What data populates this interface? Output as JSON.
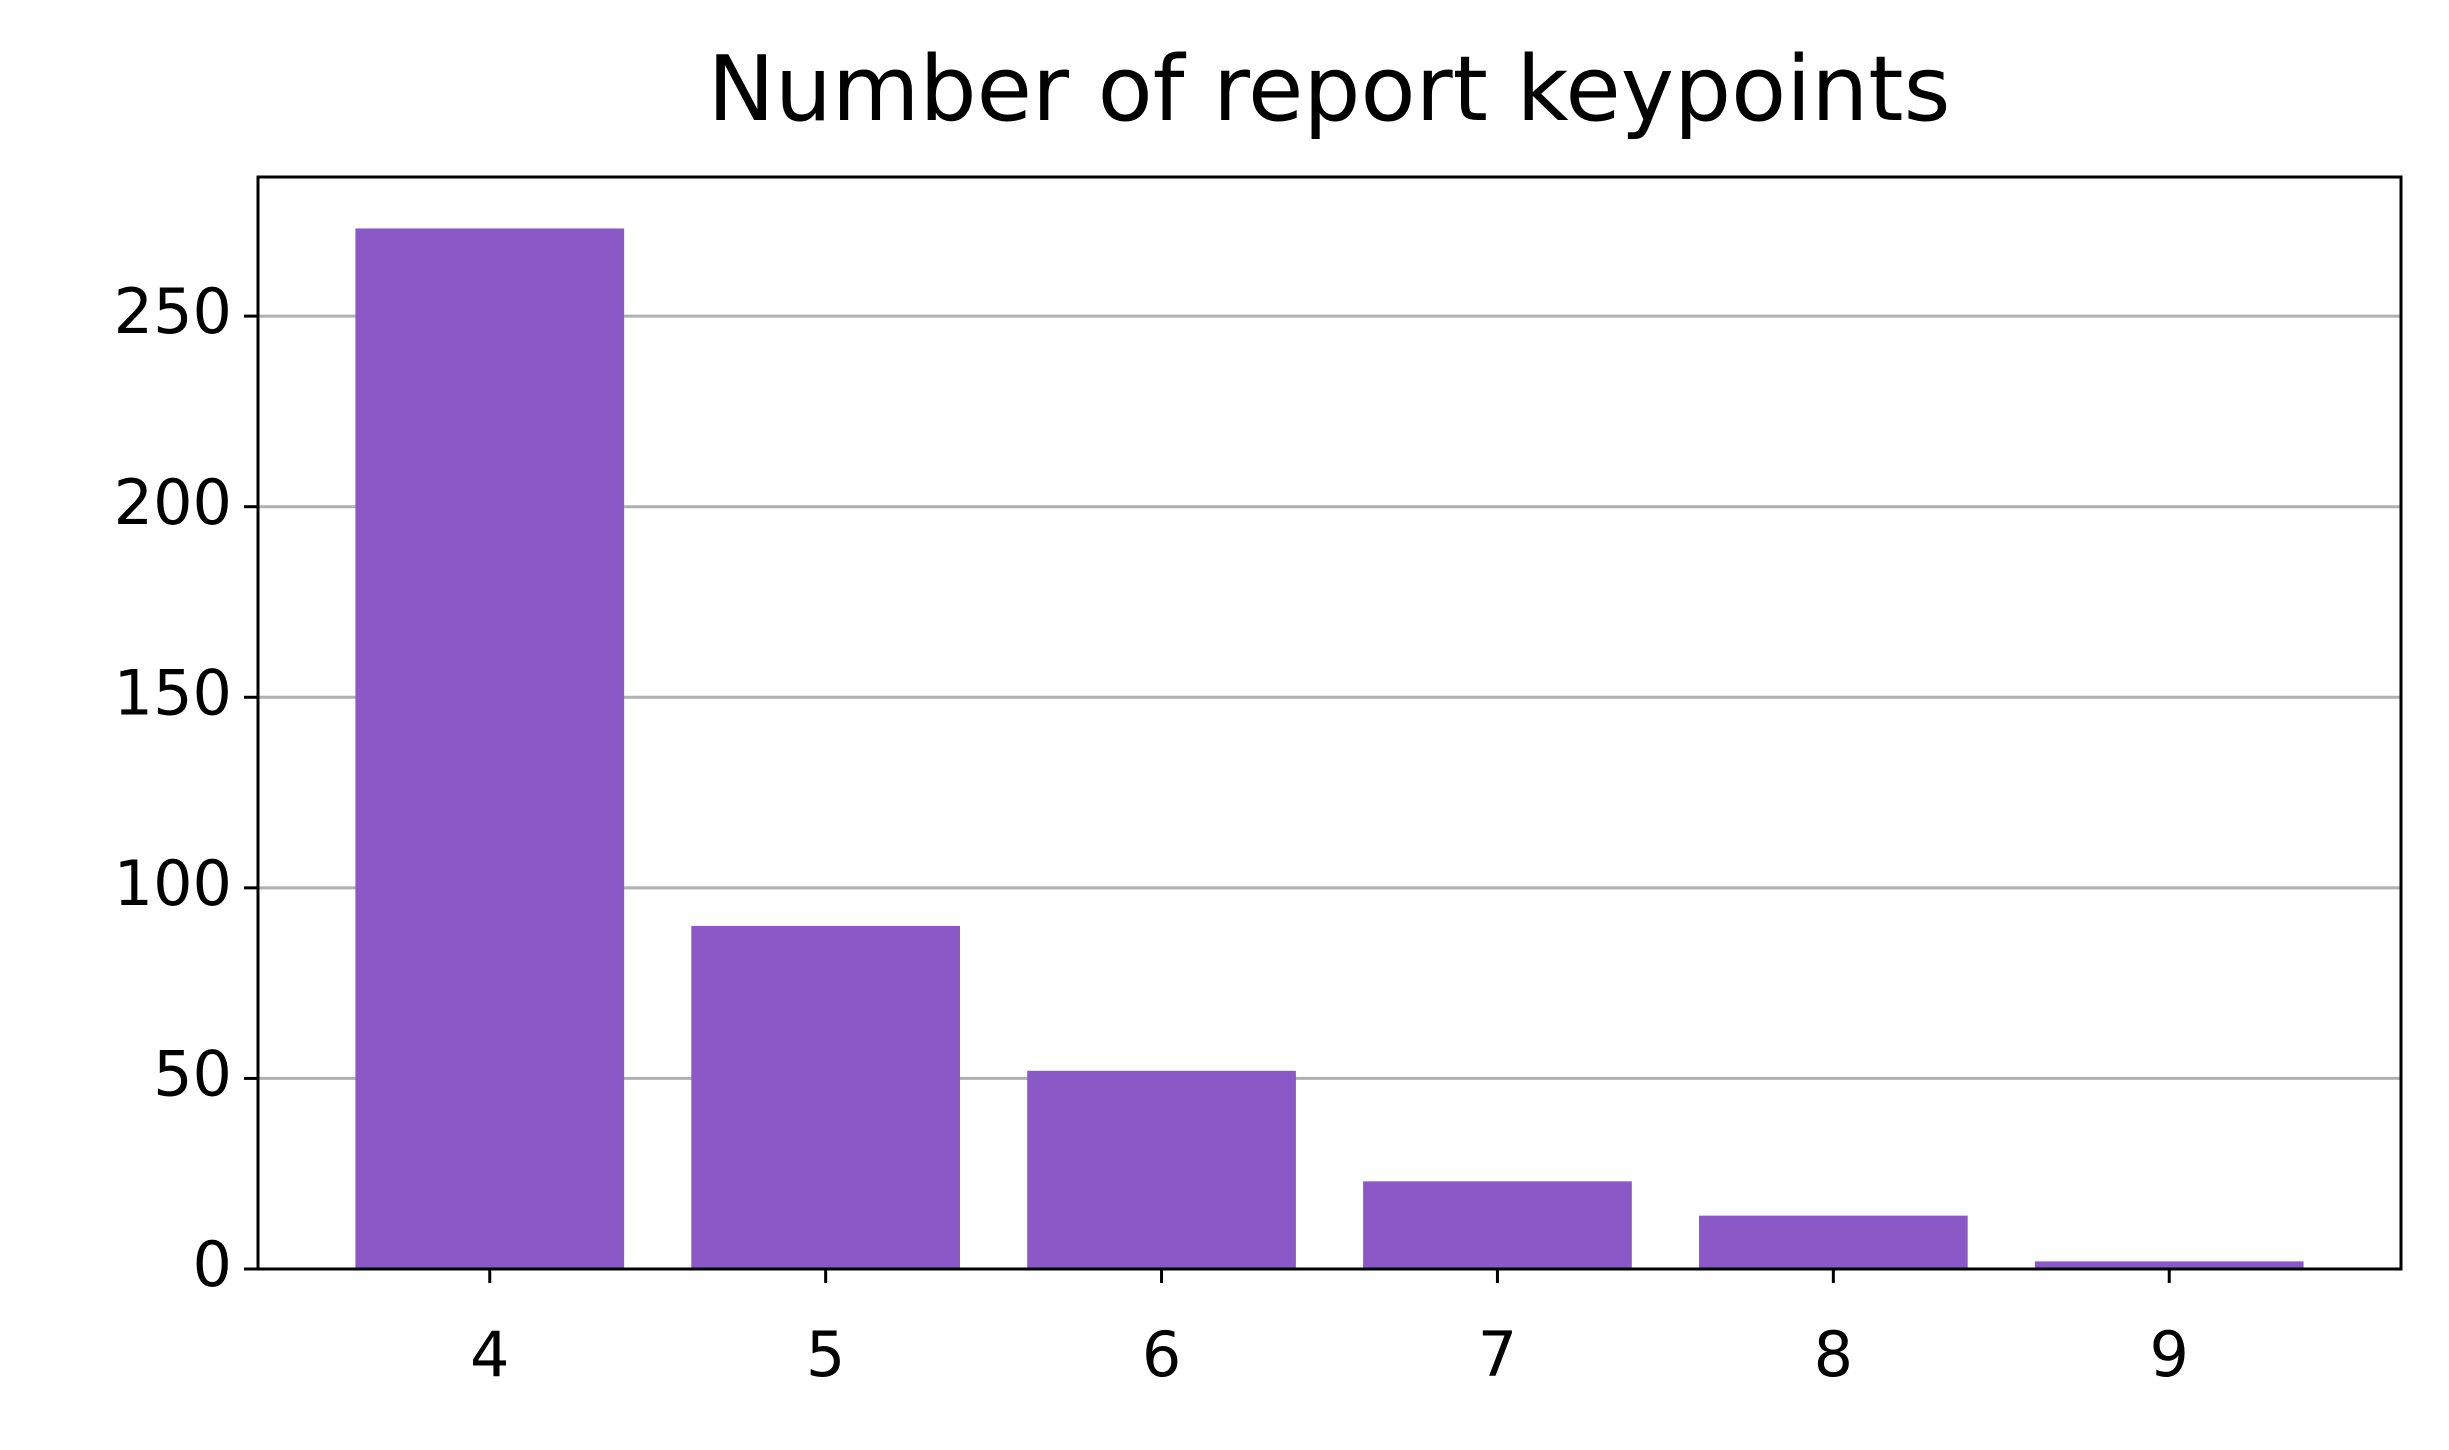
{
  "chart_data": {
    "type": "bar",
    "title": "Number of report keypoints",
    "x": [
      4,
      5,
      6,
      7,
      8,
      9
    ],
    "values": [
      273,
      90,
      52,
      23,
      14,
      2
    ],
    "color": "#8a59c7",
    "xlim": [
      3.31,
      9.69
    ],
    "xticks": [
      4,
      5,
      6,
      7,
      8,
      9
    ],
    "ylim": [
      0,
      286.5
    ],
    "yticks": [
      0,
      50,
      100,
      150,
      200,
      250
    ],
    "grid": true
  }
}
